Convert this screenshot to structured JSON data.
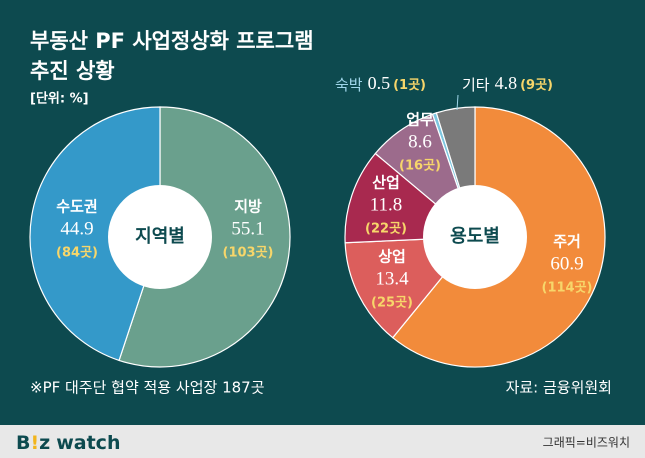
{
  "title": "부동산 PF 사업정상화 프로그램",
  "subtitle": "추진 상황",
  "unit": "[단위: %]",
  "note": "※PF 대주단 협약 적용 사업장 187곳",
  "source": "자료: 금융위원회",
  "footer": {
    "logo_b": "B",
    "logo_mark": "!",
    "logo_z": "z",
    "logo_watch": "watch",
    "credit": "그래픽=비즈워치"
  },
  "chart_data": [
    {
      "type": "pie",
      "center_label": "지역별",
      "categories": [
        "지방",
        "수도권"
      ],
      "values": [
        55.1,
        44.9
      ],
      "counts": [
        "(103곳)",
        "(84곳)"
      ],
      "colors": [
        "#6aa08d",
        "#3499c9"
      ]
    },
    {
      "type": "pie",
      "center_label": "용도별",
      "categories": [
        "주거",
        "상업",
        "산업",
        "업무",
        "숙박",
        "기타"
      ],
      "values": [
        60.9,
        13.4,
        11.8,
        8.6,
        0.5,
        4.8
      ],
      "counts": [
        "(114곳)",
        "(25곳)",
        "(22곳)",
        "(16곳)",
        "(1곳)",
        "(9곳)"
      ],
      "colors": [
        "#f28b3b",
        "#dc5e5c",
        "#a8294f",
        "#9c6b8c",
        "#7cc6e0",
        "#7a7a7a"
      ]
    }
  ]
}
